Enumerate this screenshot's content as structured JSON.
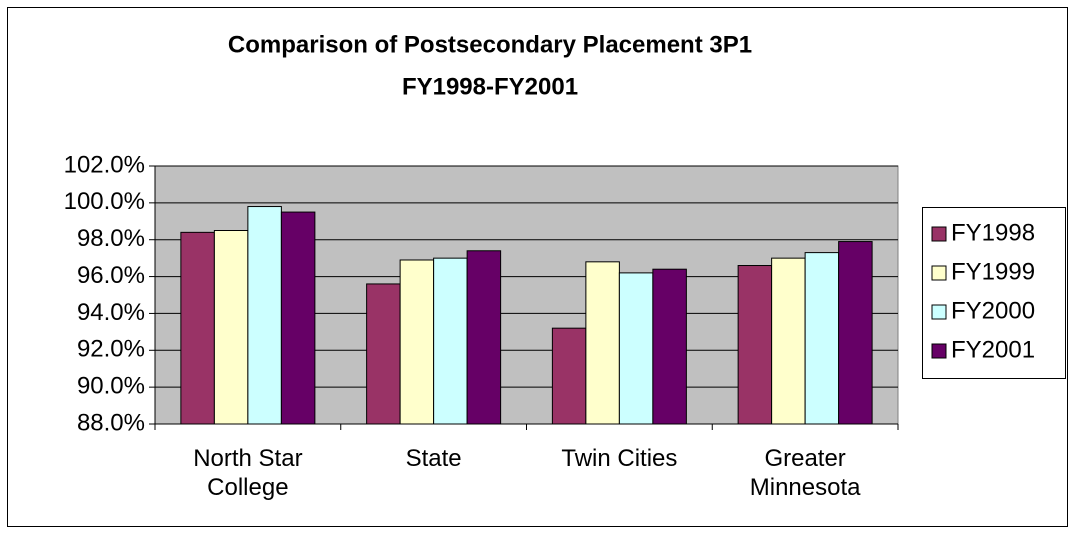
{
  "chart_data": {
    "type": "bar",
    "title": "Comparison of Postsecondary Placement 3P1",
    "subtitle": "FY1998-FY2001",
    "categories": [
      "North Star College",
      "State",
      "Twin Cities",
      "Greater Minnesota"
    ],
    "series": [
      {
        "name": "FY1998",
        "color": "#993366",
        "values": [
          98.4,
          95.6,
          93.2,
          96.6
        ]
      },
      {
        "name": "FY1999",
        "color": "#ffffcc",
        "values": [
          98.5,
          96.9,
          96.8,
          97.0
        ]
      },
      {
        "name": "FY2000",
        "color": "#ccffff",
        "values": [
          99.8,
          97.0,
          96.2,
          97.3
        ]
      },
      {
        "name": "FY2001",
        "color": "#660066",
        "values": [
          99.5,
          97.4,
          96.4,
          97.9
        ]
      }
    ],
    "ylim": [
      88,
      102
    ],
    "yticks": [
      {
        "value": 88,
        "label": "88.0%"
      },
      {
        "value": 90,
        "label": "90.0%"
      },
      {
        "value": 92,
        "label": "92.0%"
      },
      {
        "value": 94,
        "label": "94.0%"
      },
      {
        "value": 96,
        "label": "96.0%"
      },
      {
        "value": 98,
        "label": "98.0%"
      },
      {
        "value": 100,
        "label": "100.0%"
      },
      {
        "value": 102,
        "label": "102.0%"
      }
    ],
    "grid": true,
    "legend": "right",
    "plot_background": "#c0c0c0"
  }
}
